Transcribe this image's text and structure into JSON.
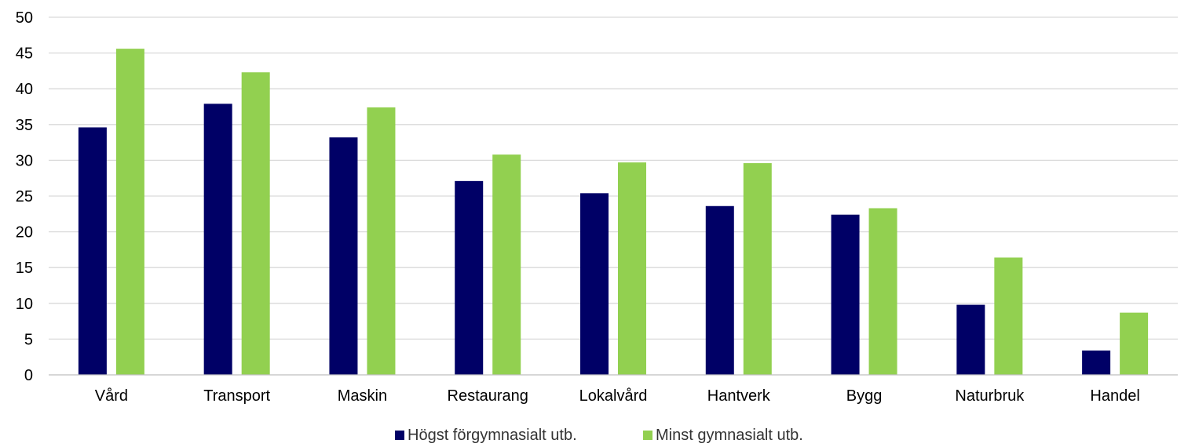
{
  "chart_data": {
    "type": "bar",
    "categories": [
      "Vård",
      "Transport",
      "Maskin",
      "Restaurang",
      "Lokalvård",
      "Hantverk",
      "Bygg",
      "Naturbruk",
      "Handel"
    ],
    "series": [
      {
        "name": "Högst förgymnasialt utb.",
        "color": "#000066",
        "values": [
          34.6,
          37.9,
          33.2,
          27.1,
          25.4,
          23.6,
          22.4,
          9.8,
          3.4
        ]
      },
      {
        "name": "Minst gymnasialt utb.",
        "color": "#92d050",
        "values": [
          45.6,
          42.3,
          37.4,
          30.8,
          29.7,
          29.6,
          23.3,
          16.4,
          8.7
        ]
      }
    ],
    "ylim": [
      0,
      50
    ],
    "yticks": [
      0,
      5,
      10,
      15,
      20,
      25,
      30,
      35,
      40,
      45,
      50
    ],
    "title": "",
    "xlabel": "",
    "ylabel": "",
    "grid": true,
    "legend_position": "bottom"
  }
}
